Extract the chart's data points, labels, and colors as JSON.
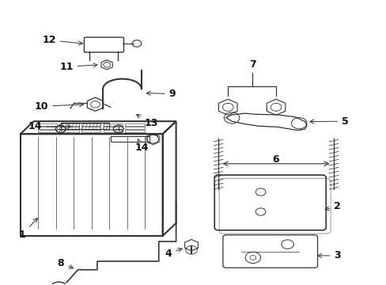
{
  "bg_color": "#ffffff",
  "line_color": "#333333",
  "text_color": "#111111",
  "label_fontsize": 9
}
